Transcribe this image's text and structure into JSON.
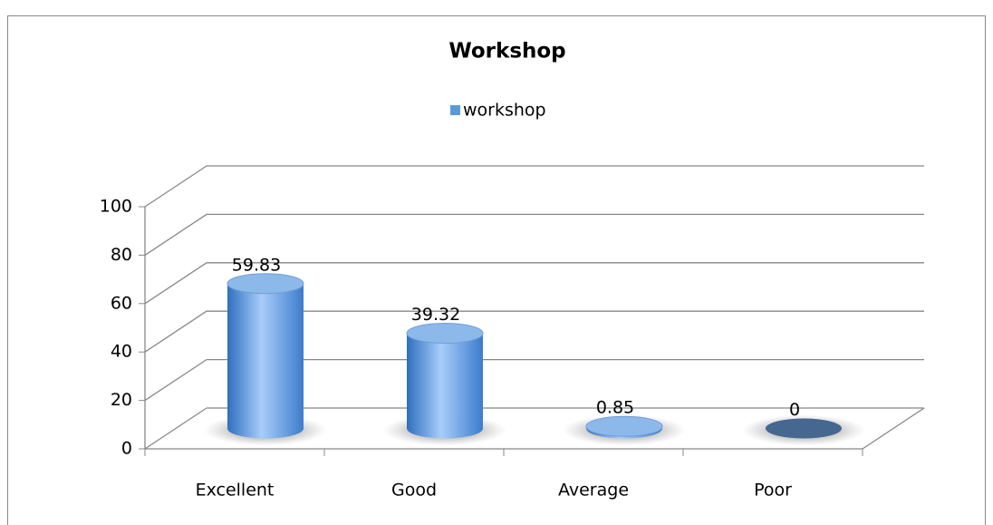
{
  "chart_data": {
    "type": "bar3d",
    "title": "Workshop",
    "categories": [
      "Excellent",
      "Good",
      "Average",
      "Poor"
    ],
    "series": [
      {
        "name": "workshop",
        "color": "#5b9bd5",
        "values": [
          59.83,
          39.32,
          0.85,
          0
        ]
      }
    ],
    "ylim": [
      0,
      100
    ],
    "yticks": [
      0,
      20,
      40,
      60,
      80,
      100
    ],
    "grid": true,
    "legend": "top"
  }
}
